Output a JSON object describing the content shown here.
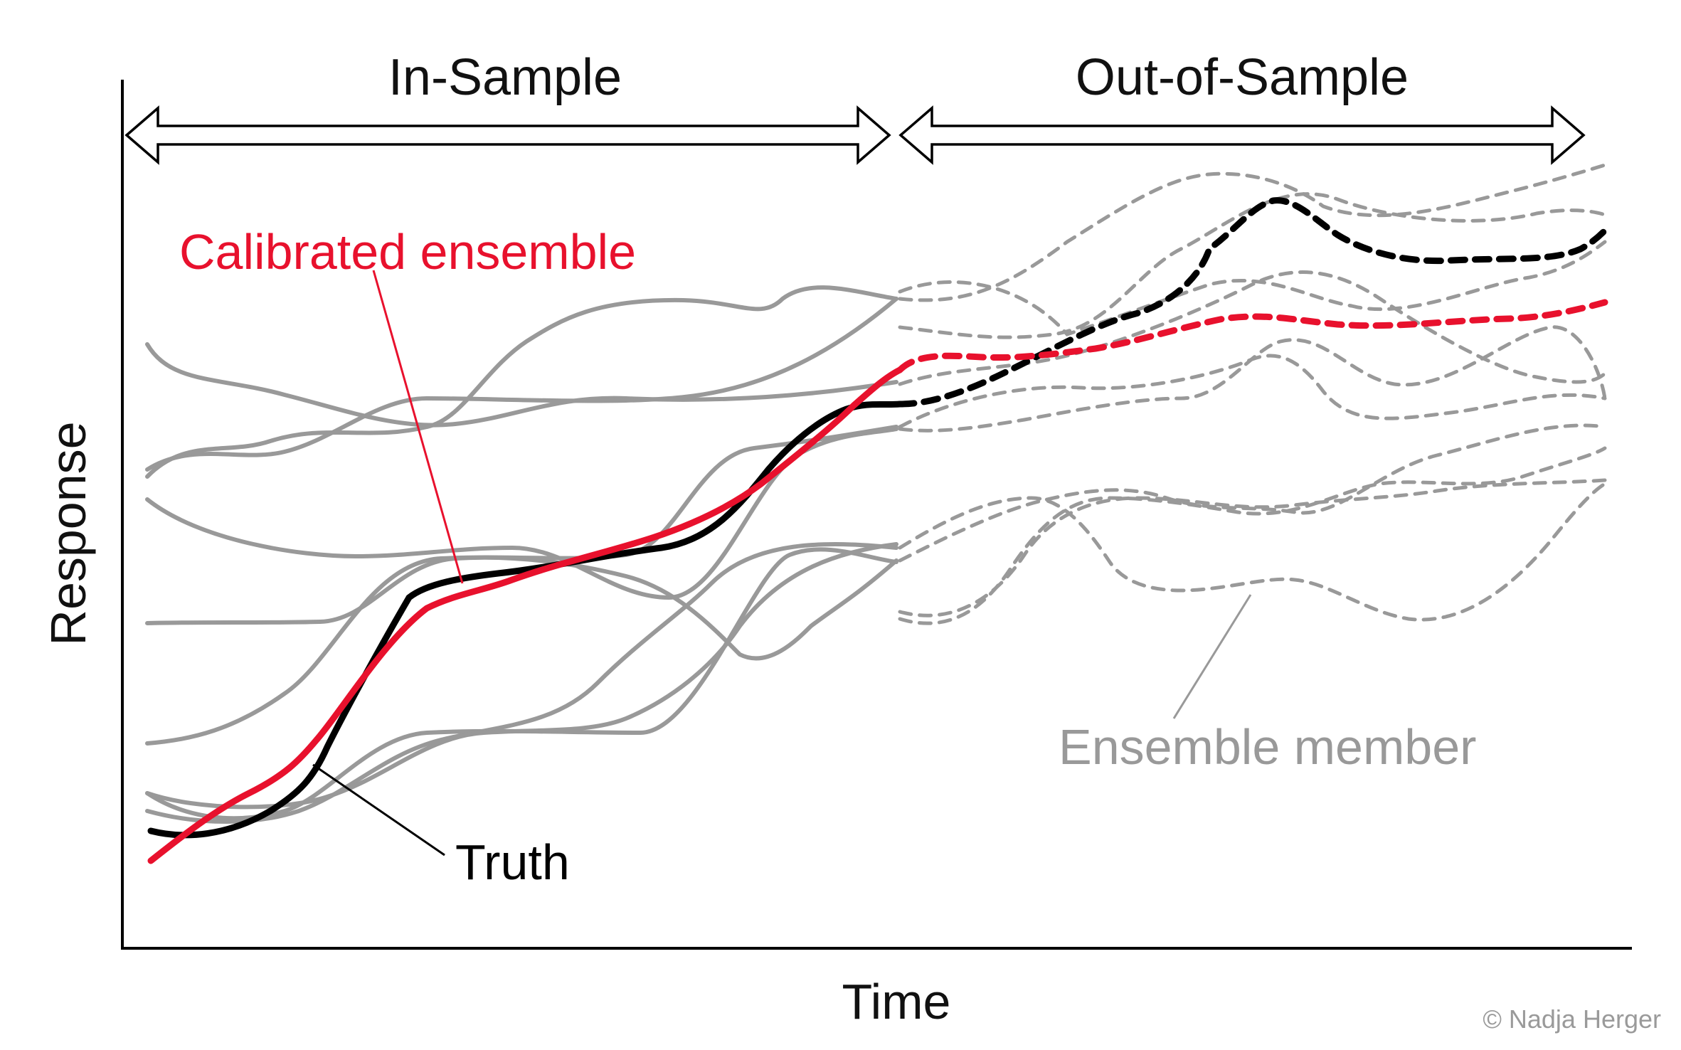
{
  "colors": {
    "member": "#999999",
    "truth": "#000000",
    "ensemble": "#e8112d",
    "axis": "#000000"
  },
  "axes": {
    "xlabel": "Time",
    "ylabel": "Response"
  },
  "periods": {
    "in_sample": "In-Sample",
    "out_of_sample": "Out-of-Sample"
  },
  "annotations": {
    "ensemble": "Calibrated ensemble",
    "truth": "Truth",
    "member": "Ensemble member"
  },
  "credit": "© Nadja Herger"
}
